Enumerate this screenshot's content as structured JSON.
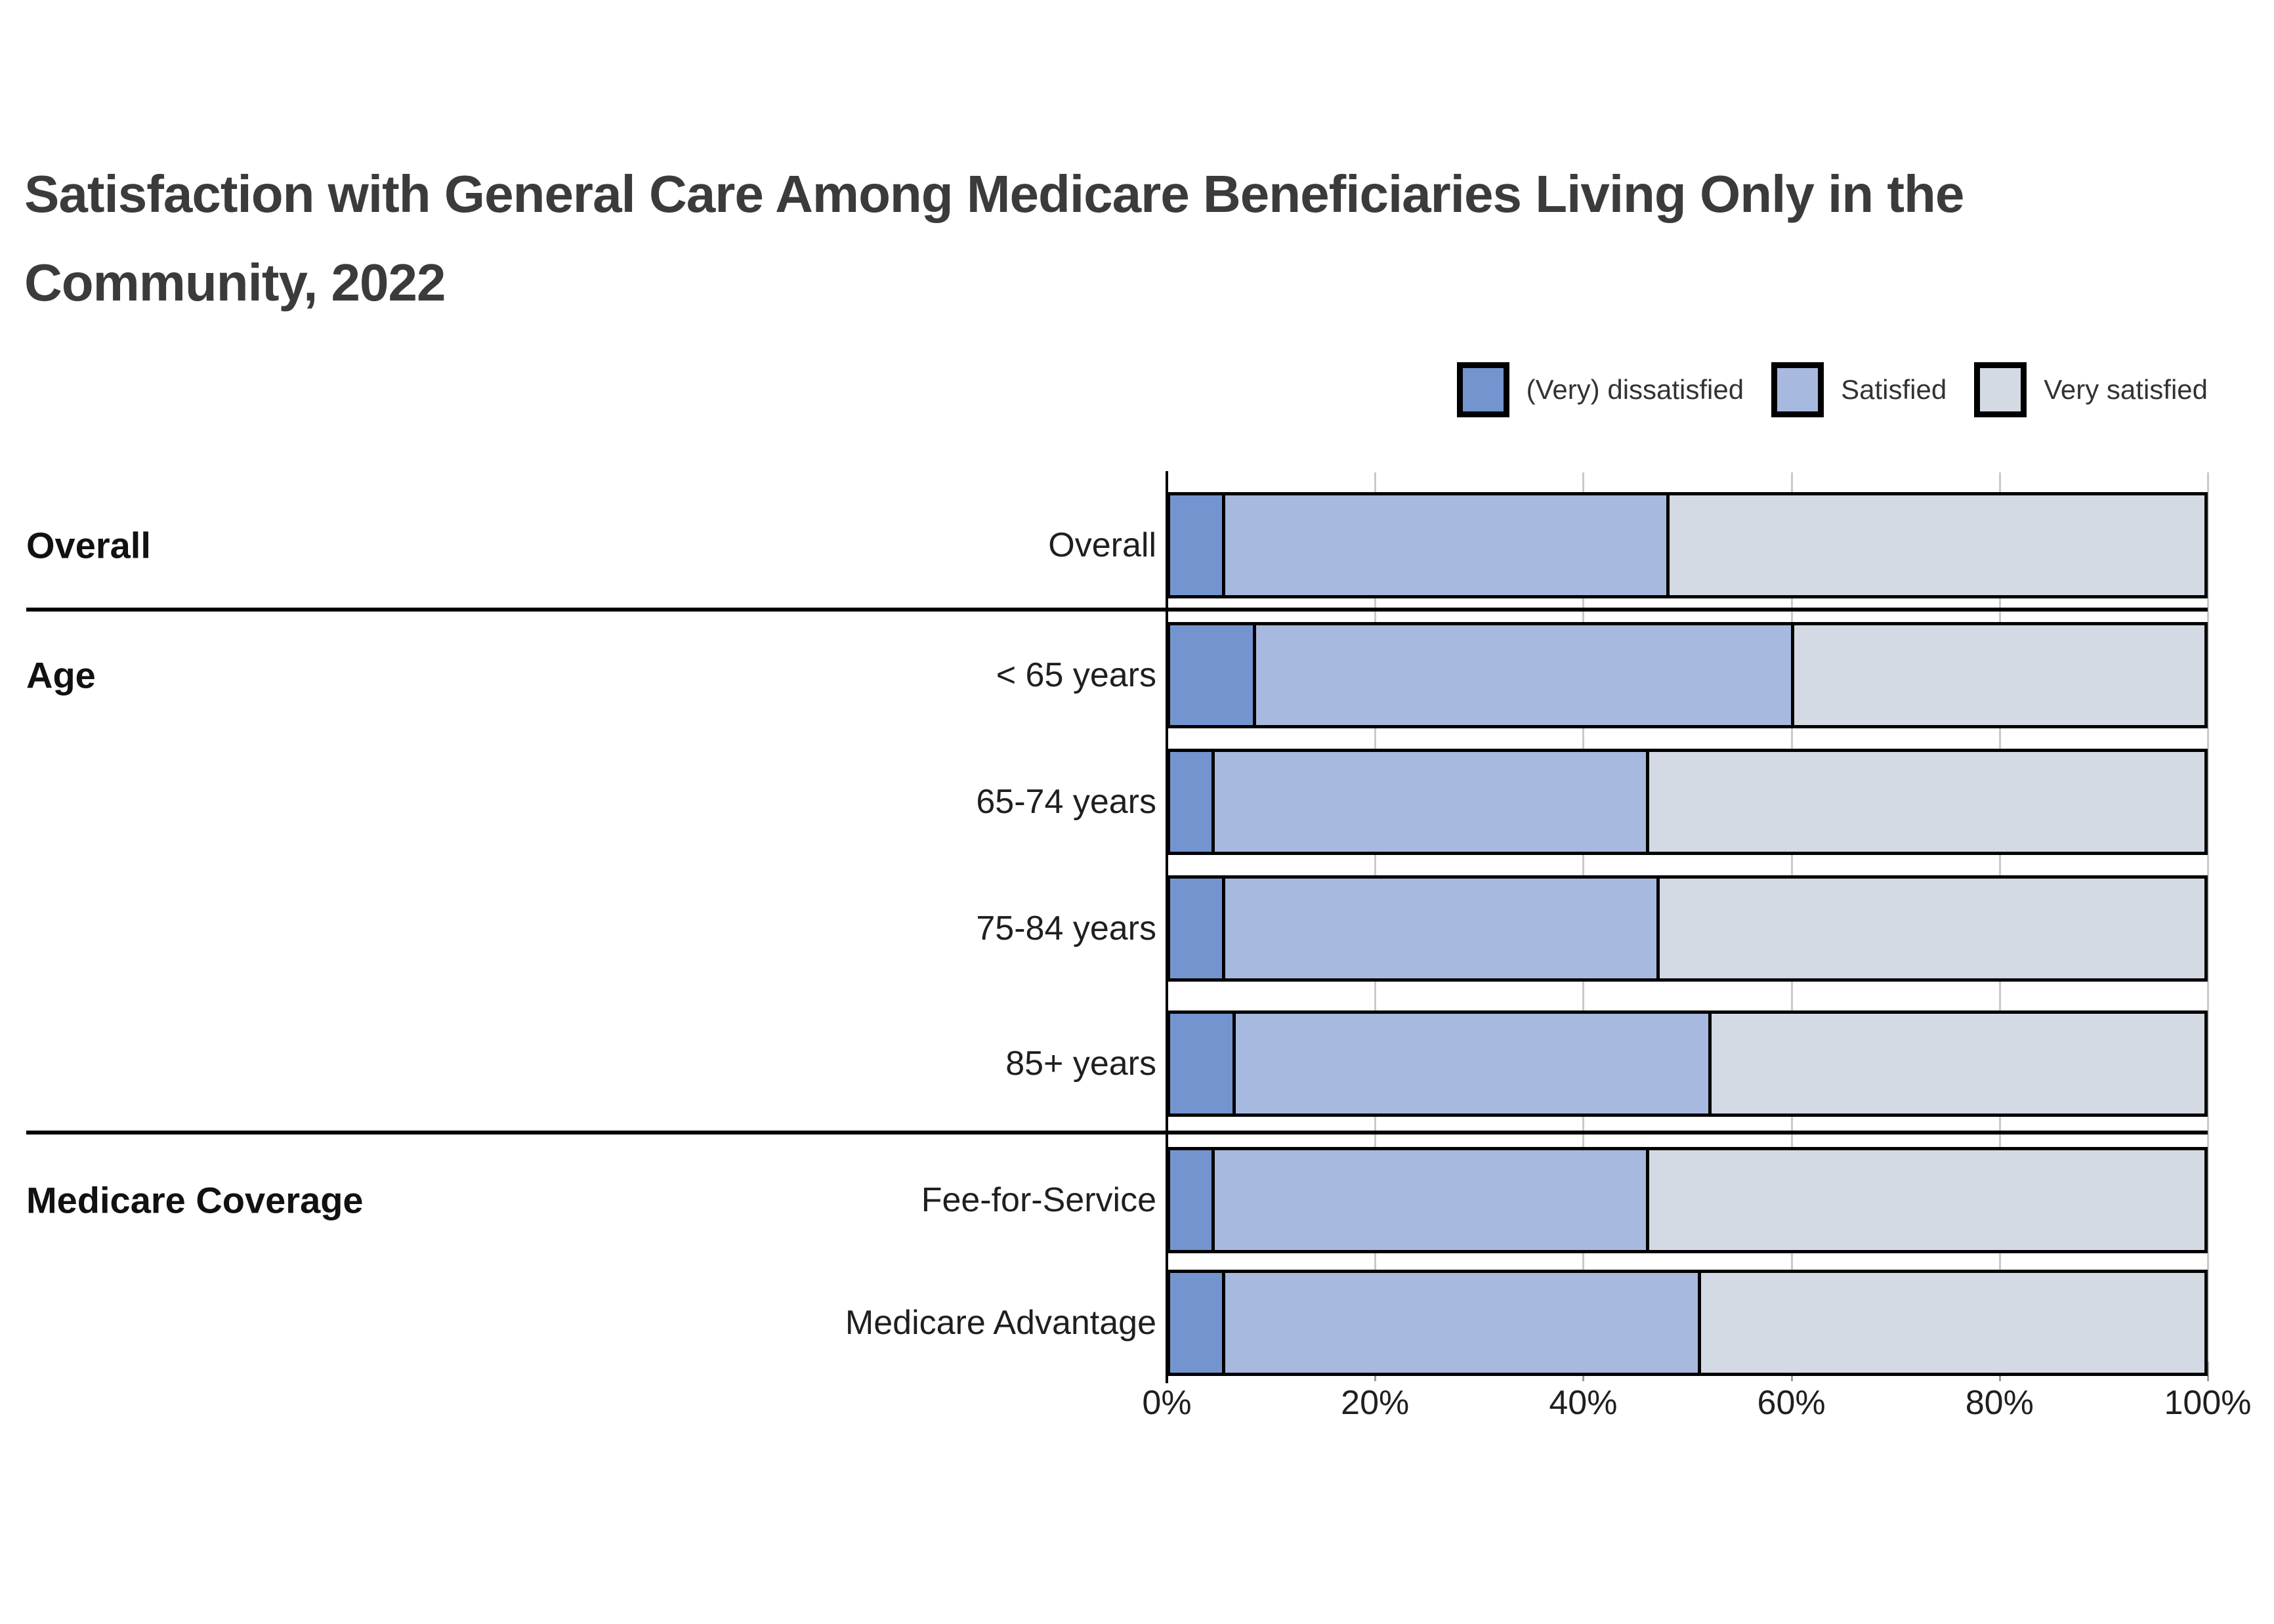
{
  "title": {
    "lines": [
      "Satisfaction with General Care Among Medicare Beneficiaries Living Only in the",
      "Community, 2022"
    ],
    "full": "Satisfaction with General Care Among Medicare Beneficiaries Living Only in the Community, 2022"
  },
  "legend": [
    {
      "label": "(Very) dissatisfied",
      "color": "#7494D0"
    },
    {
      "label": "Satisfied",
      "color": "#A7B9DE"
    },
    {
      "label": "Very satisfied",
      "color": "#D4DAE3"
    }
  ],
  "chart_data": {
    "type": "bar",
    "stacked": true,
    "orientation": "horizontal",
    "unit": "percent",
    "series_names": [
      "(Very) dissatisfied",
      "Satisfied",
      "Very satisfied"
    ],
    "colors": [
      "#7494D0",
      "#A7B9DE",
      "#D4DAE3"
    ],
    "groups": [
      {
        "group": "Overall",
        "rows": [
          {
            "label": "Overall",
            "values": [
              5,
              43,
              52
            ]
          }
        ]
      },
      {
        "group": "Age",
        "rows": [
          {
            "label": "< 65 years",
            "values": [
              8,
              52,
              40
            ]
          },
          {
            "label": "65-74 years",
            "values": [
              4,
              42,
              54
            ]
          },
          {
            "label": "75-84 years",
            "values": [
              5,
              42,
              53
            ]
          },
          {
            "label": "85+ years",
            "values": [
              6,
              46,
              48
            ]
          }
        ]
      },
      {
        "group": "Medicare Coverage",
        "rows": [
          {
            "label": "Fee-for-Service",
            "values": [
              4,
              42,
              54
            ]
          },
          {
            "label": "Medicare Advantage",
            "values": [
              5,
              46,
              49
            ]
          }
        ]
      }
    ],
    "x_axis": {
      "ticks": [
        "0%",
        "20%",
        "40%",
        "60%",
        "80%",
        "100%"
      ],
      "min": 0,
      "max": 100,
      "grid": true
    },
    "legend_position": "top-right",
    "title": "Satisfaction with General Care Among Medicare Beneficiaries Living Only in the Community, 2022"
  }
}
